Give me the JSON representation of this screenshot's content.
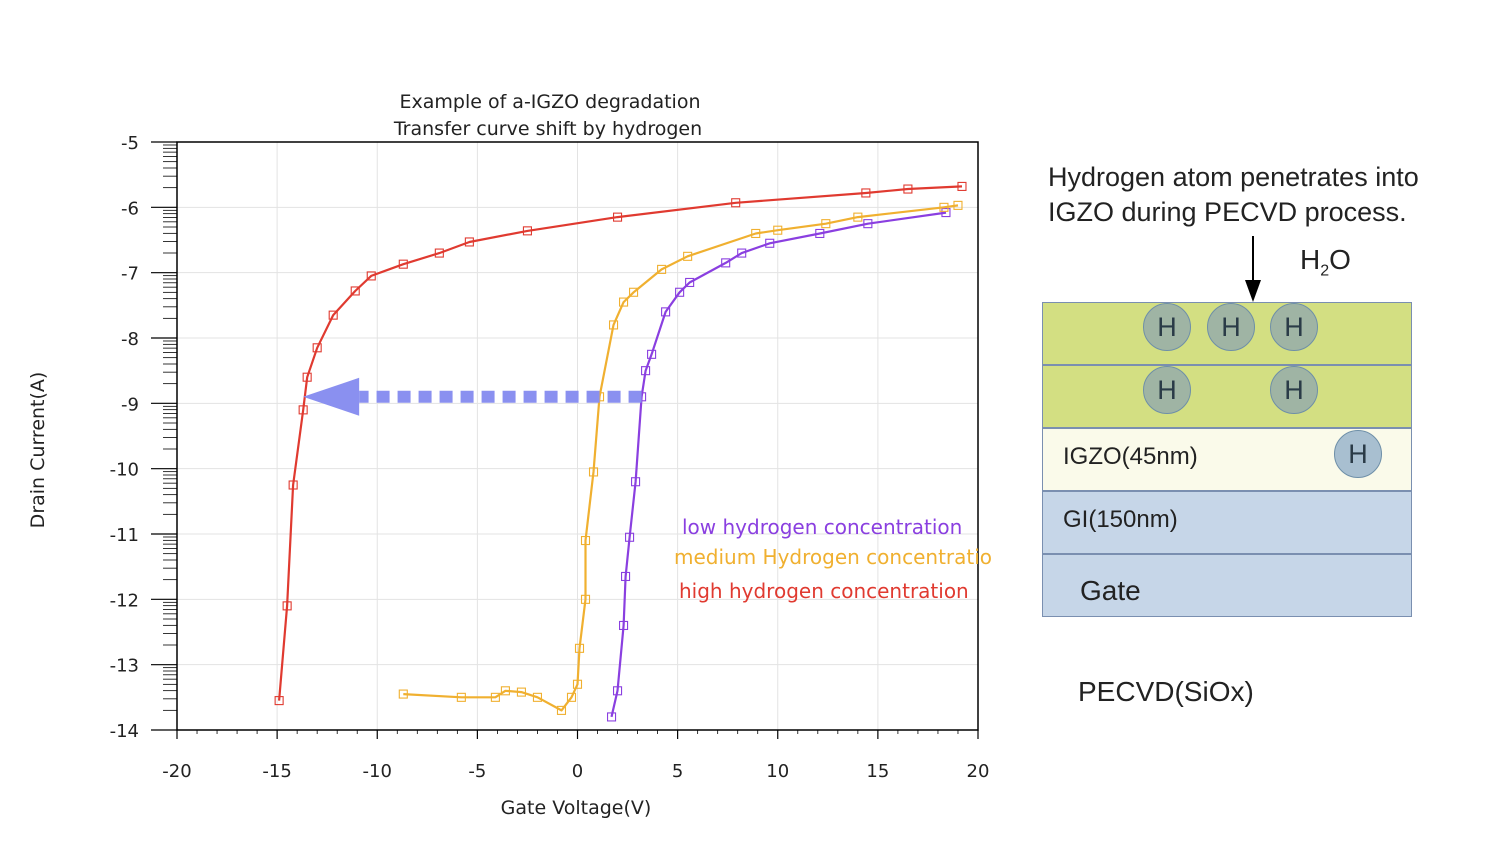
{
  "chart_data": {
    "type": "line",
    "title": [
      "Example of a-IGZO degradation",
      "Transfer curve shift by hydrogen"
    ],
    "xlabel": "Gate Voltage(V)",
    "ylabel": "Drain Current(A)",
    "xlim": [
      -20,
      20
    ],
    "ylim": [
      -14,
      -5
    ],
    "x_ticks": [
      "-20",
      "-15",
      "-10",
      "-5",
      "0",
      "5",
      "10",
      "15",
      "20"
    ],
    "y_ticks": [
      "-5",
      "-6",
      "-7",
      "-8",
      "-9",
      "-10",
      "-11",
      "-12",
      "-13",
      "-14"
    ],
    "grid": true,
    "legend_position": "lower-right inside plot",
    "series": [
      {
        "name": "low hydrogen concentration",
        "color": "#8a3fe0",
        "points": [
          [
            1.7,
            -13.8
          ],
          [
            2.0,
            -13.4
          ],
          [
            2.3,
            -12.4
          ],
          [
            2.4,
            -11.65
          ],
          [
            2.6,
            -11.05
          ],
          [
            2.9,
            -10.2
          ],
          [
            3.2,
            -8.9
          ],
          [
            3.4,
            -8.5
          ],
          [
            3.7,
            -8.25
          ],
          [
            4.4,
            -7.6
          ],
          [
            5.1,
            -7.3
          ],
          [
            5.6,
            -7.15
          ],
          [
            7.4,
            -6.85
          ],
          [
            8.2,
            -6.7
          ],
          [
            9.6,
            -6.55
          ],
          [
            12.1,
            -6.4
          ],
          [
            14.5,
            -6.25
          ],
          [
            18.4,
            -6.08
          ]
        ]
      },
      {
        "name": "medium Hydrogen concentratio",
        "color": "#f0b030",
        "points": [
          [
            -8.7,
            -13.45
          ],
          [
            -5.8,
            -13.5
          ],
          [
            -4.1,
            -13.5
          ],
          [
            -3.6,
            -13.4
          ],
          [
            -2.8,
            -13.42
          ],
          [
            -2.0,
            -13.5
          ],
          [
            -0.8,
            -13.7
          ],
          [
            -0.3,
            -13.5
          ],
          [
            0.0,
            -13.3
          ],
          [
            0.1,
            -12.75
          ],
          [
            0.4,
            -12.0
          ],
          [
            0.4,
            -11.1
          ],
          [
            0.8,
            -10.05
          ],
          [
            1.1,
            -8.9
          ],
          [
            1.8,
            -7.8
          ],
          [
            2.3,
            -7.45
          ],
          [
            2.8,
            -7.3
          ],
          [
            4.2,
            -6.95
          ],
          [
            5.5,
            -6.75
          ],
          [
            8.9,
            -6.4
          ],
          [
            10.0,
            -6.35
          ],
          [
            12.4,
            -6.25
          ],
          [
            14.0,
            -6.15
          ],
          [
            18.3,
            -6.0
          ],
          [
            19.0,
            -5.97
          ]
        ]
      },
      {
        "name": "high hydrogen concentration",
        "color": "#e03a30",
        "points": [
          [
            -14.9,
            -13.55
          ],
          [
            -14.5,
            -12.1
          ],
          [
            -14.2,
            -10.25
          ],
          [
            -13.7,
            -9.1
          ],
          [
            -13.5,
            -8.6
          ],
          [
            -13.0,
            -8.15
          ],
          [
            -12.2,
            -7.65
          ],
          [
            -11.1,
            -7.28
          ],
          [
            -10.3,
            -7.05
          ],
          [
            -8.7,
            -6.87
          ],
          [
            -6.9,
            -6.7
          ],
          [
            -5.4,
            -6.53
          ],
          [
            -2.5,
            -6.36
          ],
          [
            2.0,
            -6.15
          ],
          [
            7.9,
            -5.93
          ],
          [
            14.4,
            -5.78
          ],
          [
            16.5,
            -5.72
          ],
          [
            19.2,
            -5.68
          ]
        ]
      }
    ],
    "annotation_arrow": {
      "from": [
        3.2,
        -8.9
      ],
      "to": [
        -13.7,
        -8.9
      ],
      "color": "#8a90f0"
    }
  },
  "diagram": {
    "caption_line1": "Hydrogen atom penetrates into",
    "caption_line2": "IGZO during PECVD process.",
    "h2o_main": "H",
    "h2o_sub": "2",
    "h2o_tail": "O",
    "layers": [
      {
        "label": "",
        "color": "#d3df82"
      },
      {
        "label": "",
        "color": "#d3df82"
      },
      {
        "label": "IGZO(45nm)",
        "color": "#fafaea"
      },
      {
        "label": "GI(150nm)",
        "color": "#c6d6e8"
      },
      {
        "label": "Gate",
        "color": "#c6d6e8"
      }
    ],
    "atom_label": "H",
    "pecvd_label": "PECVD(SiOx)"
  }
}
